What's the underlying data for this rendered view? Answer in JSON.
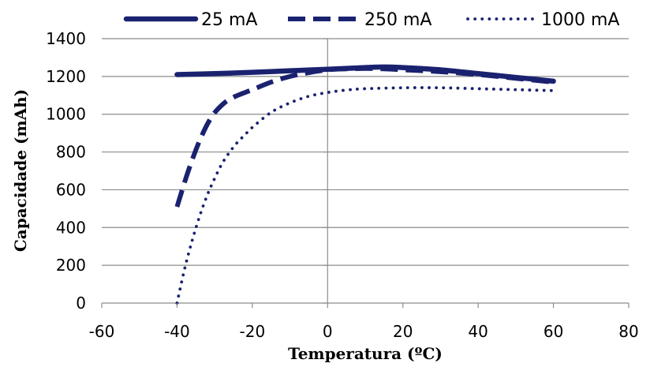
{
  "chart_data": {
    "type": "line",
    "xlabel": "Temperatura (ºC)",
    "ylabel": "Capacidade (mAh)",
    "xlim": [
      -60,
      80
    ],
    "ylim": [
      0,
      1400
    ],
    "xticks": [
      -60,
      -40,
      -20,
      0,
      20,
      40,
      60,
      80
    ],
    "yticks": [
      0,
      200,
      400,
      600,
      800,
      1000,
      1200,
      1400
    ],
    "xtick_labels": [
      "-60",
      "-40",
      "-20",
      "0",
      "20",
      "40",
      "60",
      "80"
    ],
    "ytick_labels": [
      "0",
      "200",
      "400",
      "600",
      "800",
      "1000",
      "1200",
      "1400"
    ],
    "grid": "horizontal",
    "legend_position": "top",
    "color": "#1a2270",
    "series": [
      {
        "name": "25 mA",
        "style": "solid",
        "x": [
          -40,
          -30,
          -20,
          -10,
          0,
          10,
          15,
          20,
          30,
          40,
          50,
          60
        ],
        "y": [
          1210,
          1215,
          1222,
          1230,
          1238,
          1247,
          1250,
          1247,
          1235,
          1215,
          1195,
          1175
        ]
      },
      {
        "name": "250 mA",
        "style": "dashed",
        "x": [
          -40,
          -37,
          -34,
          -31,
          -28,
          -25,
          -20,
          -15,
          -10,
          -5,
          0,
          5,
          10,
          15,
          20,
          30,
          40,
          50,
          60
        ],
        "y": [
          510,
          700,
          860,
          980,
          1050,
          1090,
          1130,
          1170,
          1200,
          1220,
          1235,
          1240,
          1242,
          1240,
          1235,
          1225,
          1210,
          1190,
          1170
        ]
      },
      {
        "name": "1000 mA",
        "style": "dotted",
        "x": [
          -40,
          -38,
          -36,
          -34,
          -32,
          -30,
          -28,
          -26,
          -24,
          -22,
          -20,
          -15,
          -10,
          -5,
          0,
          5,
          10,
          20,
          30,
          40,
          50,
          60
        ],
        "y": [
          0,
          180,
          330,
          460,
          570,
          660,
          740,
          800,
          850,
          890,
          930,
          1010,
          1060,
          1095,
          1115,
          1128,
          1135,
          1140,
          1140,
          1135,
          1130,
          1125
        ]
      }
    ]
  }
}
